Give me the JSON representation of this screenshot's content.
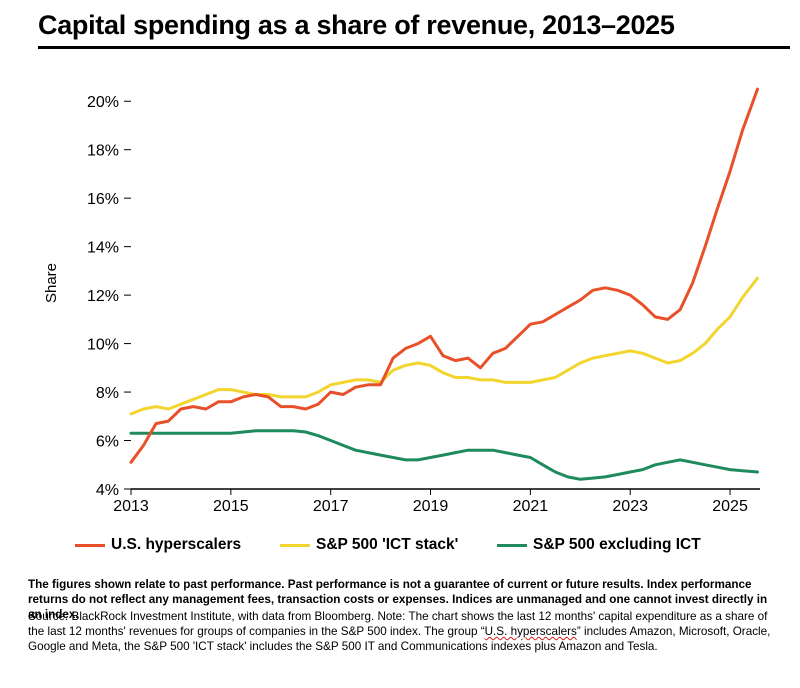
{
  "title": "Capital spending as a share of revenue, 2013–2025",
  "colors": {
    "hyperscalers": "#e8502a",
    "ict_stack": "#f2d52e",
    "ex_ict": "#1f8a5b",
    "text": "#000000"
  },
  "chart_data": {
    "type": "line",
    "title": "Capital spending as a share of revenue, 2013–2025",
    "xlabel": "",
    "ylabel": "Share",
    "xlim": [
      2013,
      2025.6
    ],
    "ylim": [
      4,
      21
    ],
    "x_ticks": [
      2013,
      2015,
      2017,
      2019,
      2021,
      2023,
      2025
    ],
    "y_ticks": [
      4,
      6,
      8,
      10,
      12,
      14,
      16,
      18,
      20
    ],
    "y_tick_labels": [
      "4%",
      "6%",
      "8%",
      "10%",
      "12%",
      "14%",
      "16%",
      "18%",
      "20%"
    ],
    "legend_position": "bottom",
    "series": [
      {
        "name": "U.S. hyperscalers",
        "color": "#e8502a",
        "x": [
          2013.0,
          2013.25,
          2013.5,
          2013.75,
          2014.0,
          2014.25,
          2014.5,
          2014.75,
          2015.0,
          2015.25,
          2015.5,
          2015.75,
          2016.0,
          2016.25,
          2016.5,
          2016.75,
          2017.0,
          2017.25,
          2017.5,
          2017.75,
          2018.0,
          2018.25,
          2018.5,
          2018.75,
          2019.0,
          2019.25,
          2019.5,
          2019.75,
          2020.0,
          2020.25,
          2020.5,
          2020.75,
          2021.0,
          2021.25,
          2021.5,
          2021.75,
          2022.0,
          2022.25,
          2022.5,
          2022.75,
          2023.0,
          2023.25,
          2023.5,
          2023.75,
          2024.0,
          2024.25,
          2024.5,
          2024.75,
          2025.0,
          2025.25,
          2025.55
        ],
        "values": [
          5.1,
          5.8,
          6.7,
          6.8,
          7.3,
          7.4,
          7.3,
          7.6,
          7.6,
          7.8,
          7.9,
          7.8,
          7.4,
          7.4,
          7.3,
          7.5,
          8.0,
          7.9,
          8.2,
          8.3,
          8.3,
          9.4,
          9.8,
          10.0,
          10.3,
          9.5,
          9.3,
          9.4,
          9.0,
          9.6,
          9.8,
          10.3,
          10.8,
          10.9,
          11.2,
          11.5,
          11.8,
          12.2,
          12.3,
          12.2,
          12.0,
          11.6,
          11.1,
          11.0,
          11.4,
          12.5,
          14.0,
          15.6,
          17.1,
          18.8,
          20.5
        ]
      },
      {
        "name": "S&P 500 'ICT stack'",
        "color": "#f2d52e",
        "x": [
          2013.0,
          2013.25,
          2013.5,
          2013.75,
          2014.0,
          2014.25,
          2014.5,
          2014.75,
          2015.0,
          2015.25,
          2015.5,
          2015.75,
          2016.0,
          2016.25,
          2016.5,
          2016.75,
          2017.0,
          2017.25,
          2017.5,
          2017.75,
          2018.0,
          2018.25,
          2018.5,
          2018.75,
          2019.0,
          2019.25,
          2019.5,
          2019.75,
          2020.0,
          2020.25,
          2020.5,
          2020.75,
          2021.0,
          2021.25,
          2021.5,
          2021.75,
          2022.0,
          2022.25,
          2022.5,
          2022.75,
          2023.0,
          2023.25,
          2023.5,
          2023.75,
          2024.0,
          2024.25,
          2024.5,
          2024.75,
          2025.0,
          2025.25,
          2025.55
        ],
        "values": [
          7.1,
          7.3,
          7.4,
          7.3,
          7.5,
          7.7,
          7.9,
          8.1,
          8.1,
          8.0,
          7.9,
          7.9,
          7.8,
          7.8,
          7.8,
          8.0,
          8.3,
          8.4,
          8.5,
          8.5,
          8.4,
          8.9,
          9.1,
          9.2,
          9.1,
          8.8,
          8.6,
          8.6,
          8.5,
          8.5,
          8.4,
          8.4,
          8.4,
          8.5,
          8.6,
          8.9,
          9.2,
          9.4,
          9.5,
          9.6,
          9.7,
          9.6,
          9.4,
          9.2,
          9.3,
          9.6,
          10.0,
          10.6,
          11.1,
          11.9,
          12.7
        ]
      },
      {
        "name": "S&P 500 excluding ICT",
        "color": "#1f8a5b",
        "x": [
          2013.0,
          2013.25,
          2013.5,
          2013.75,
          2014.0,
          2014.25,
          2014.5,
          2014.75,
          2015.0,
          2015.25,
          2015.5,
          2015.75,
          2016.0,
          2016.25,
          2016.5,
          2016.75,
          2017.0,
          2017.25,
          2017.5,
          2017.75,
          2018.0,
          2018.25,
          2018.5,
          2018.75,
          2019.0,
          2019.25,
          2019.5,
          2019.75,
          2020.0,
          2020.25,
          2020.5,
          2020.75,
          2021.0,
          2021.25,
          2021.5,
          2021.75,
          2022.0,
          2022.25,
          2022.5,
          2022.75,
          2023.0,
          2023.25,
          2023.5,
          2023.75,
          2024.0,
          2024.25,
          2024.5,
          2024.75,
          2025.0,
          2025.25,
          2025.55
        ],
        "values": [
          6.3,
          6.3,
          6.3,
          6.3,
          6.3,
          6.3,
          6.3,
          6.3,
          6.3,
          6.35,
          6.4,
          6.4,
          6.4,
          6.4,
          6.35,
          6.2,
          6.0,
          5.8,
          5.6,
          5.5,
          5.4,
          5.3,
          5.2,
          5.2,
          5.3,
          5.4,
          5.5,
          5.6,
          5.6,
          5.6,
          5.5,
          5.4,
          5.3,
          5.0,
          4.7,
          4.5,
          4.4,
          4.45,
          4.5,
          4.6,
          4.7,
          4.8,
          5.0,
          5.1,
          5.2,
          5.1,
          5.0,
          4.9,
          4.8,
          4.75,
          4.7
        ]
      }
    ]
  },
  "footnote": {
    "disclaimer": "The figures shown relate to past performance. Past performance is not a guarantee of current or future results. Index performance returns do not reflect any management fees, transaction costs or expenses. Indices are unmanaged and one cannot invest directly in an index.",
    "source_before": "Source: BlackRock Investment Institute, with data from Bloomberg. Note: The chart shows the last 12 months' capital expenditure as a share of the last 12 months' revenues for groups of companies in the S&P 500 index. The group “",
    "source_squiggle": "U.S. hyperscalers",
    "source_after": "” includes Amazon, Microsoft, Oracle, Google and Meta, the S&P 500 'ICT stack' includes the S&P 500 IT and Communications indexes plus Amazon and Tesla."
  }
}
